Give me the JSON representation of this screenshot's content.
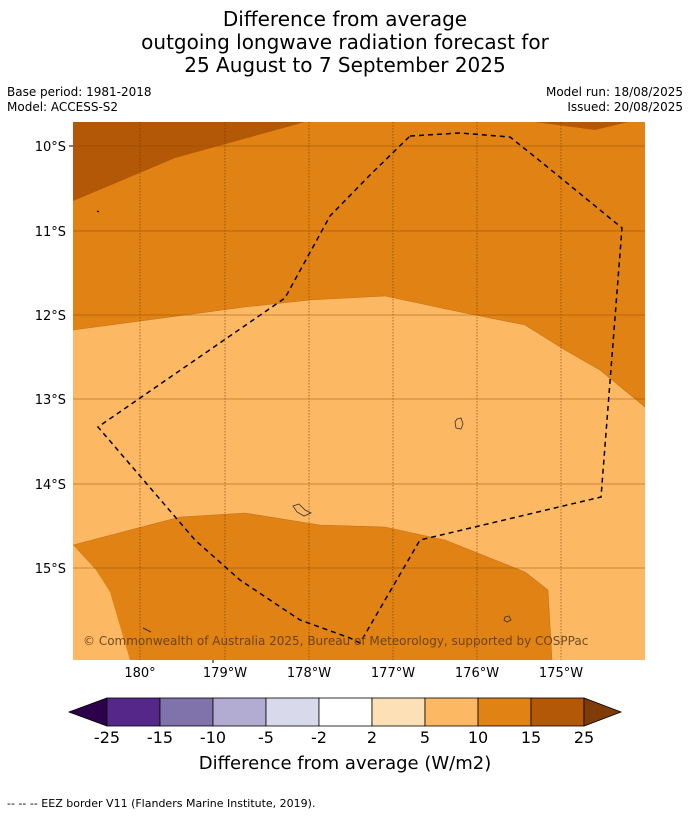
{
  "title": {
    "line1": "Difference from average",
    "line2": "outgoing longwave radiation forecast for",
    "line3": "25 August to 7 September 2025"
  },
  "meta": {
    "base_period": "Base period: 1981-2018",
    "model": "Model: ACCESS-S2",
    "model_run": "Model run: 18/08/2025",
    "issued": "Issued: 20/08/2025"
  },
  "map": {
    "lat_labels": [
      "10°S",
      "11°S",
      "12°S",
      "13°S",
      "14°S",
      "15°S"
    ],
    "lon_labels": [
      "180°",
      "179°W",
      "178°W",
      "177°W",
      "176°W",
      "175°W"
    ],
    "copyright": "© Commonwealth of Australia 2025, Bureau of Meteorology, supported by COSPPac",
    "colors": {
      "band_10_15": "#e08214",
      "band_15_25": "#b35806",
      "band_5_10": "#fdb863"
    }
  },
  "colorbar": {
    "title": "Difference from average (W/m2)",
    "ticks": [
      "-25",
      "-15",
      "-10",
      "-5",
      "-2",
      "2",
      "5",
      "10",
      "15",
      "25"
    ],
    "colors": [
      "#2d004b",
      "#542788",
      "#8073ac",
      "#b2abd2",
      "#d8daeb",
      "#ffffff",
      "#fee0b6",
      "#fdb863",
      "#e08214",
      "#b35806",
      "#7f3b08"
    ]
  },
  "footnote": "--  --  -- EEZ border V11 (Flanders Marine Institute, 2019)."
}
